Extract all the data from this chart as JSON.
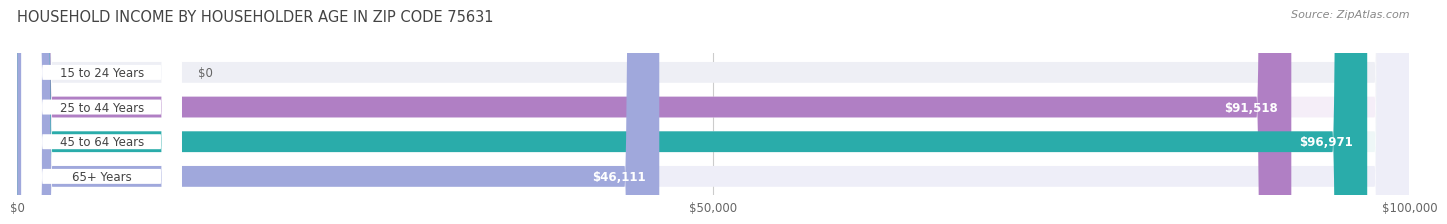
{
  "title": "HOUSEHOLD INCOME BY HOUSEHOLDER AGE IN ZIP CODE 75631",
  "source": "Source: ZipAtlas.com",
  "categories": [
    "15 to 24 Years",
    "25 to 44 Years",
    "45 to 64 Years",
    "65+ Years"
  ],
  "values": [
    0,
    91518,
    96971,
    46111
  ],
  "value_labels": [
    "$0",
    "$91,518",
    "$96,971",
    "$46,111"
  ],
  "bar_colors": [
    "#a0c8e0",
    "#b07fc4",
    "#2aacaa",
    "#a0a8dc"
  ],
  "bar_bg_colors": [
    "#eeeff5",
    "#f5eef8",
    "#eef7f7",
    "#eeeef8"
  ],
  "xlim": [
    0,
    100000
  ],
  "xticks": [
    0,
    50000,
    100000
  ],
  "xtick_labels": [
    "$0",
    "$50,000",
    "$100,000"
  ],
  "title_fontsize": 10.5,
  "source_fontsize": 8,
  "label_fontsize": 8.5,
  "value_fontsize": 8.5,
  "background_color": "#ffffff"
}
